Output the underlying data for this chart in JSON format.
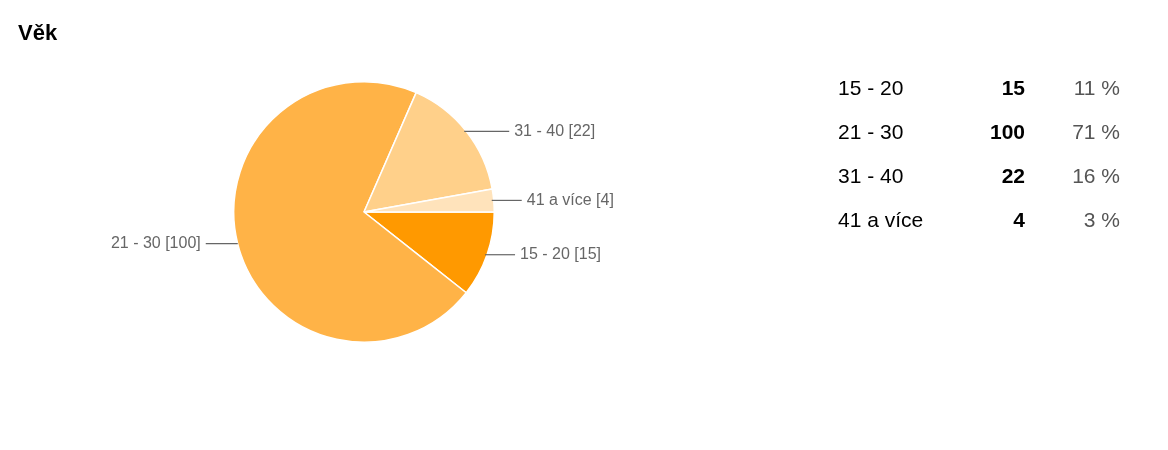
{
  "chart_data": [
    {
      "type": "pie",
      "title": "Věk",
      "categories": [
        "15 - 20",
        "21 - 30",
        "31 - 40",
        "41 a více"
      ],
      "values": [
        15,
        100,
        22,
        4
      ],
      "colors": [
        "#ff9900",
        "#ffb347",
        "#ffd08a",
        "#ffe3bb"
      ],
      "value_labels": [
        "[15]",
        "[100]",
        "[22]",
        "[4]"
      ]
    },
    {
      "type": "other",
      "categories": [
        "15 - 20",
        "21 - 30",
        "31 - 40",
        "41 a více"
      ],
      "values": [
        15,
        100,
        22,
        4
      ],
      "data_labels": true,
      "annotations": [
        "11 %",
        "71 %",
        "16 %",
        "3 %"
      ]
    }
  ]
}
